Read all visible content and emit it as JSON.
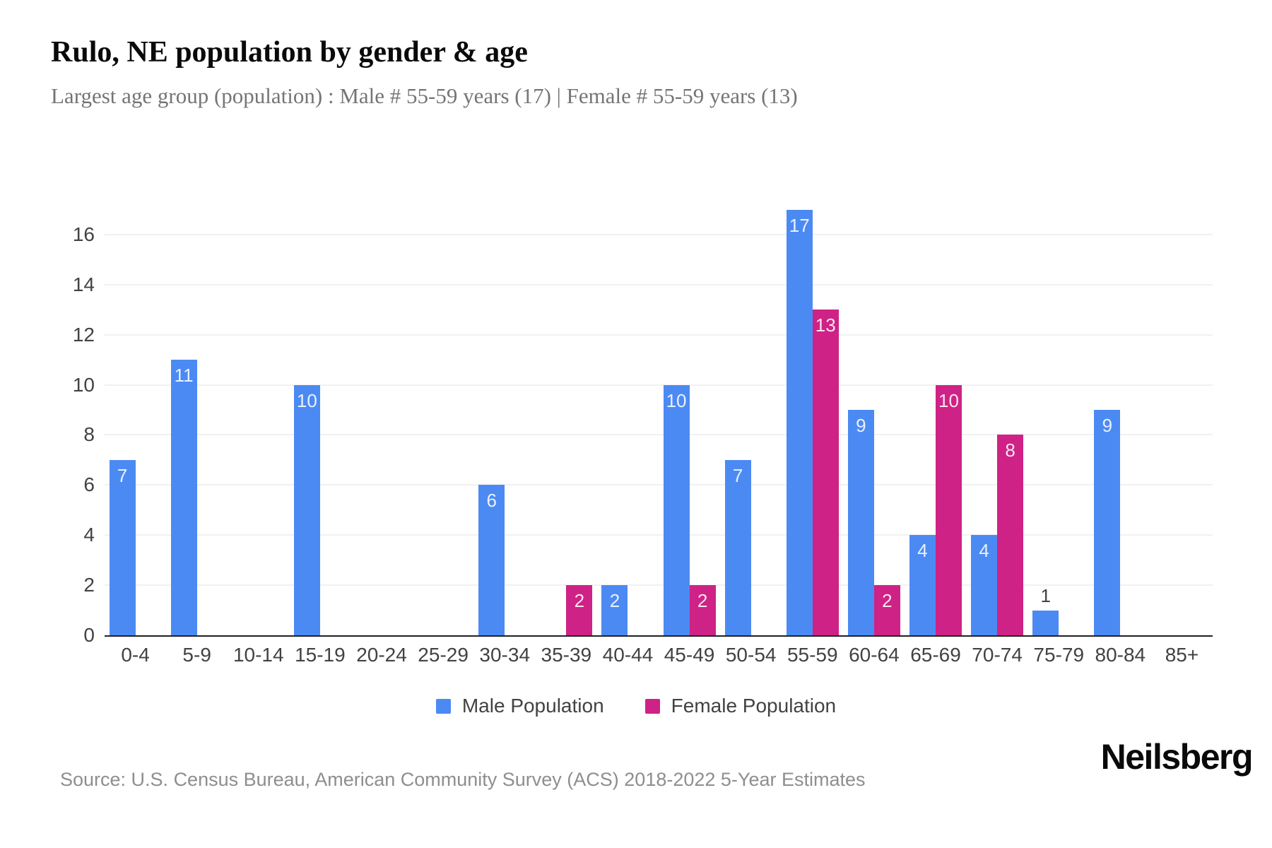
{
  "header": {
    "title": "Rulo, NE population by gender & age",
    "subtitle": "Largest age group (population) : Male # 55-59 years (17) | Female # 55-59 years (13)"
  },
  "chart_data": {
    "type": "bar",
    "title": "Rulo, NE population by gender & age",
    "categories": [
      "0-4",
      "5-9",
      "10-14",
      "15-19",
      "20-24",
      "25-29",
      "30-34",
      "35-39",
      "40-44",
      "45-49",
      "50-54",
      "55-59",
      "60-64",
      "65-69",
      "70-74",
      "75-79",
      "80-84",
      "85+"
    ],
    "series": [
      {
        "name": "Male Population",
        "color": "#4c8af3",
        "values": [
          7,
          11,
          0,
          10,
          0,
          0,
          6,
          0,
          2,
          10,
          7,
          17,
          9,
          4,
          4,
          1,
          9,
          0
        ]
      },
      {
        "name": "Female Population",
        "color": "#ce2286",
        "values": [
          0,
          0,
          0,
          0,
          0,
          0,
          0,
          2,
          0,
          2,
          0,
          13,
          2,
          10,
          8,
          0,
          0,
          0
        ]
      }
    ],
    "xlabel": "",
    "ylabel": "",
    "ylim": [
      0,
      17
    ],
    "yticks": [
      0,
      2,
      4,
      6,
      8,
      10,
      12,
      14,
      16
    ],
    "grid": "horizontal",
    "legend_position": "bottom",
    "value_labels": "shown on every non-zero bar, white inside bar top; dark above bar when bar is too short"
  },
  "legend": {
    "items": [
      {
        "label": "Male Population",
        "color": "#4c8af3"
      },
      {
        "label": "Female Population",
        "color": "#ce2286"
      }
    ]
  },
  "footer": {
    "source": "Source: U.S. Census Bureau, American Community Survey (ACS) 2018-2022 5-Year Estimates",
    "brand": "Neilsberg"
  },
  "colors": {
    "male": "#4c8af3",
    "female": "#ce2286",
    "gridline": "#f1f1f1",
    "axis_line": "#212121",
    "tick_text": "#424242",
    "subtitle_text": "#757575",
    "source_text": "#8e8e8e",
    "background": "#ffffff"
  }
}
